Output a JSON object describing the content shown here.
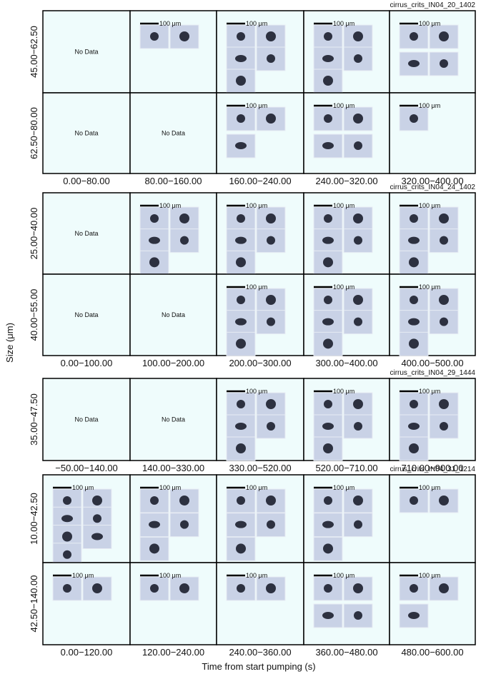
{
  "figure": {
    "y_axis_label": "Size (μm)",
    "x_axis_label": "Time from start pumping (s)",
    "no_data_label": "No Data",
    "scale_bar_label": "100 μm",
    "groups": [
      {
        "name": "cirrus_crits_IN04_20_1402",
        "rows": [
          "45.00−62.50",
          "62.50−80.00"
        ],
        "columns": [
          "0.00−80.00",
          "80.00−160.00",
          "160.00−240.00",
          "240.00−320.00",
          "320.00−400.00"
        ],
        "images": [
          [
            0,
            2,
            5,
            5,
            4
          ],
          [
            0,
            0,
            3,
            4,
            1
          ]
        ]
      },
      {
        "name": "cirrus_crits_IN04_24_1402",
        "rows": [
          "25.00−40.00",
          "40.00−55.00"
        ],
        "columns": [
          "0.00−100.00",
          "100.00−200.00",
          "200.00−300.00",
          "300.00−400.00",
          "400.00−500.00"
        ],
        "images": [
          [
            0,
            5,
            5,
            5,
            5
          ],
          [
            0,
            0,
            5,
            5,
            5
          ]
        ]
      },
      {
        "name": "cirrus_crits_IN04_29_1444",
        "rows": [
          "35.00−47.50"
        ],
        "columns": [
          "−50.00−140.00",
          "140.00−330.00",
          "330.00−520.00",
          "520.00−710.00",
          "710.00−900.00"
        ],
        "images": [
          [
            0,
            0,
            5,
            5,
            5
          ]
        ]
      },
      {
        "name": "cirrus_crits_IN04_31_1214",
        "rows": [
          "10.00−42.50",
          "42.50−140.00"
        ],
        "columns": [
          "0.00−120.00",
          "120.00−240.00",
          "240.00−360.00",
          "360.00−480.00",
          "480.00−600.00"
        ],
        "images": [
          [
            7,
            5,
            5,
            5,
            2
          ],
          [
            2,
            2,
            2,
            4,
            3
          ]
        ]
      }
    ]
  }
}
